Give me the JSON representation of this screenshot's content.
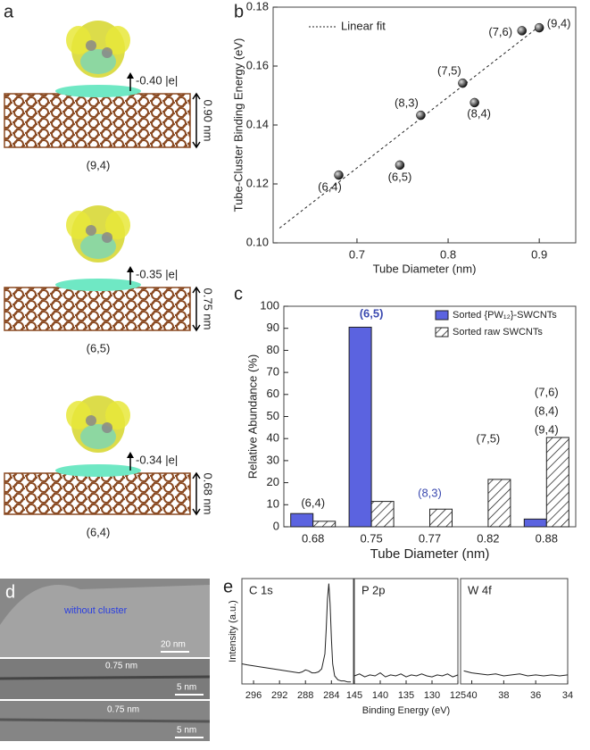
{
  "panels": {
    "a": {
      "letter": "a",
      "items": [
        {
          "charge": "-0.40 |e|",
          "diameter": "0.90 nm",
          "chirality": "(9,4)"
        },
        {
          "charge": "-0.35 |e|",
          "diameter": "0.75 nm",
          "chirality": "(6,5)"
        },
        {
          "charge": "-0.34 |e|",
          "diameter": "0.68 nm",
          "chirality": "(6,4)"
        }
      ]
    },
    "b": "b",
    "c": "c",
    "d": {
      "letter": "d",
      "labels": [
        "without cluster",
        "20 nm",
        "0.75 nm",
        "5 nm",
        "0.75 nm",
        "5 nm"
      ]
    },
    "e": "e"
  },
  "chart_data": [
    {
      "type": "scatter",
      "xlabel": "Tube Diameter (nm)",
      "ylabel": "Tube-Cluster Binding Energy (eV)",
      "x": [
        0.68,
        0.747,
        0.77,
        0.816,
        0.829,
        0.881,
        0.9
      ],
      "values": [
        0.123,
        0.1264,
        0.1433,
        0.1542,
        0.1476,
        0.172,
        0.173
      ],
      "point_labels": [
        "(6,4)",
        "(6,5)",
        "(8,3)",
        "(7,5)",
        "(8,4)",
        "(7,6)",
        "(9,4)"
      ],
      "color": "#111111",
      "fit": {
        "name": "Linear fit",
        "x": [
          0.615,
          0.9
        ],
        "values": [
          0.105,
          0.1735
        ]
      },
      "xlim": [
        0.608,
        0.94
      ],
      "xticks": [
        0.7,
        0.8,
        0.9
      ],
      "ylim": [
        0.1,
        0.18
      ],
      "yticks": [
        {
          "value": 0.1,
          "label": "0.10"
        },
        {
          "value": 0.12,
          "label": "0.12"
        },
        {
          "value": 0.14,
          "label": "0.14"
        },
        {
          "value": 0.16,
          "label": "0.16"
        },
        {
          "value": 0.18,
          "label": "0.18"
        }
      ]
    },
    {
      "type": "bar",
      "xlabel": "Tube Diameter (nm)",
      "ylabel": "Relative Abundance (%)",
      "categories": [
        "0.68",
        "0.75",
        "0.77",
        "0.82",
        "0.88"
      ],
      "series": [
        {
          "name": "Sorted {PW₁₂}-SWCNTs",
          "color": "#5b63e0",
          "values": [
            6,
            90.5,
            0,
            0,
            3.5
          ]
        },
        {
          "name": "Sorted raw SWCNTs",
          "color": "#ffffff",
          "hatch": true,
          "values": [
            2.5,
            11.5,
            8,
            21.5,
            40.5
          ]
        }
      ],
      "annotations": [
        "(6,4)",
        "(6,5)",
        "(8,3)",
        "(7,5)",
        "(7,6)",
        "(8,4)",
        "(9,4)"
      ],
      "ylim": [
        0,
        100
      ],
      "yticks": [
        0,
        10,
        20,
        30,
        40,
        50,
        60,
        70,
        80,
        90,
        100
      ]
    },
    {
      "type": "line",
      "title": "C 1s",
      "ylabel": "Intensity (a.u.)",
      "color": "#222222",
      "x": [
        297.8,
        297,
        296,
        295,
        294,
        293,
        292,
        291,
        290,
        289,
        288.5,
        288,
        287.5,
        287,
        286.5,
        286,
        285.5,
        285,
        284.8,
        284.6,
        284.4,
        284.2,
        284,
        283.8,
        283.5,
        283,
        282.5,
        282,
        281.5,
        281
      ],
      "values": [
        20,
        19,
        18,
        17,
        16,
        15,
        14,
        13,
        12,
        11,
        12,
        14,
        13,
        11,
        11,
        12,
        15,
        30,
        55,
        85,
        100,
        80,
        45,
        20,
        8,
        4,
        3,
        3,
        2,
        2
      ],
      "xlim": [
        297.8,
        280.6
      ],
      "xticks": [
        296,
        292,
        288,
        284
      ],
      "ylim": [
        0,
        105
      ]
    },
    {
      "type": "line",
      "title": "P 2p",
      "xlabel": "Binding Energy (eV)",
      "color": "#222222",
      "x": [
        145,
        144,
        143,
        142,
        141,
        140,
        139,
        138,
        137,
        136,
        135,
        134,
        133,
        132,
        131,
        130,
        129,
        128,
        127,
        126,
        125
      ],
      "values": [
        8,
        10,
        7,
        9,
        8,
        11,
        7,
        9,
        8,
        10,
        7,
        9,
        8,
        10,
        8,
        7,
        9,
        8,
        10,
        7,
        9
      ],
      "xlim": [
        145,
        125
      ],
      "xticks": [
        145,
        140,
        135,
        130,
        125
      ],
      "ylim": [
        0,
        105
      ]
    },
    {
      "type": "line",
      "title": "W 4f",
      "color": "#222222",
      "x": [
        40.5,
        40,
        39.5,
        39,
        38.5,
        38,
        37.5,
        37,
        36.5,
        36,
        35.5,
        35,
        34.5,
        34
      ],
      "values": [
        13,
        11,
        10,
        9,
        10,
        8,
        9,
        10,
        8,
        9,
        8,
        9,
        8,
        9
      ],
      "xlim": [
        40.7,
        34
      ],
      "xticks": [
        40,
        38,
        36,
        34
      ],
      "ylim": [
        0,
        105
      ]
    }
  ]
}
